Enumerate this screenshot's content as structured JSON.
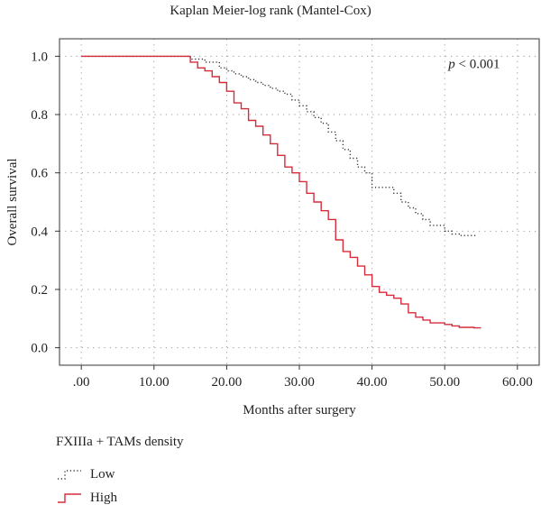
{
  "chart_data": {
    "type": "line",
    "title": "Kaplan Meier-log rank (Mantel-Cox)",
    "xlabel": "Months after surgery",
    "ylabel": "Overall survival",
    "xlim": [
      -3,
      63
    ],
    "ylim": [
      -0.06,
      1.06
    ],
    "x_ticks": [
      0,
      10,
      20,
      30,
      40,
      50,
      60
    ],
    "x_tick_labels": [
      ".00",
      "10.00",
      "20.00",
      "30.00",
      "40.00",
      "50.00",
      "60.00"
    ],
    "y_ticks": [
      0,
      0.2,
      0.4,
      0.6,
      0.8,
      1.0
    ],
    "y_tick_labels": [
      "0.0",
      "0.2",
      "0.4",
      "0.6",
      "0.8",
      "1.0"
    ],
    "grid": true,
    "annotation": {
      "prefix": "p",
      "text": " < 0.001",
      "x": 50.5,
      "y": 0.975
    },
    "legend": {
      "title": "FXIIIa + TAMs density",
      "position": "bottom-left"
    },
    "series": [
      {
        "name": "Low",
        "style": "dotted",
        "color": "#333333",
        "steps": [
          [
            0,
            1.0
          ],
          [
            15,
            0.99
          ],
          [
            17,
            0.98
          ],
          [
            19,
            0.96
          ],
          [
            20,
            0.95
          ],
          [
            21,
            0.94
          ],
          [
            22,
            0.93
          ],
          [
            23,
            0.92
          ],
          [
            24,
            0.91
          ],
          [
            25,
            0.9
          ],
          [
            26,
            0.89
          ],
          [
            27,
            0.88
          ],
          [
            28,
            0.87
          ],
          [
            29,
            0.85
          ],
          [
            30,
            0.83
          ],
          [
            31,
            0.81
          ],
          [
            32,
            0.79
          ],
          [
            33,
            0.77
          ],
          [
            34,
            0.74
          ],
          [
            35,
            0.71
          ],
          [
            36,
            0.68
          ],
          [
            37,
            0.65
          ],
          [
            38,
            0.62
          ],
          [
            39,
            0.6
          ],
          [
            40,
            0.55
          ],
          [
            43,
            0.53
          ],
          [
            44,
            0.5
          ],
          [
            45,
            0.48
          ],
          [
            46,
            0.46
          ],
          [
            47,
            0.44
          ],
          [
            48,
            0.42
          ],
          [
            50,
            0.4
          ],
          [
            51,
            0.39
          ],
          [
            52,
            0.385
          ],
          [
            54.5,
            0.385
          ]
        ]
      },
      {
        "name": "High",
        "style": "solid",
        "color": "#d62c3a",
        "steps": [
          [
            0,
            1.0
          ],
          [
            15,
            0.98
          ],
          [
            16,
            0.96
          ],
          [
            17,
            0.95
          ],
          [
            18,
            0.93
          ],
          [
            19,
            0.91
          ],
          [
            20,
            0.88
          ],
          [
            21,
            0.84
          ],
          [
            22,
            0.82
          ],
          [
            23,
            0.78
          ],
          [
            24,
            0.76
          ],
          [
            25,
            0.73
          ],
          [
            26,
            0.7
          ],
          [
            27,
            0.66
          ],
          [
            28,
            0.62
          ],
          [
            29,
            0.6
          ],
          [
            30,
            0.57
          ],
          [
            31,
            0.53
          ],
          [
            32,
            0.5
          ],
          [
            33,
            0.47
          ],
          [
            34,
            0.44
          ],
          [
            35,
            0.37
          ],
          [
            36,
            0.33
          ],
          [
            37,
            0.31
          ],
          [
            38,
            0.28
          ],
          [
            39,
            0.25
          ],
          [
            40,
            0.21
          ],
          [
            41,
            0.19
          ],
          [
            42,
            0.18
          ],
          [
            43,
            0.17
          ],
          [
            44,
            0.15
          ],
          [
            45,
            0.12
          ],
          [
            46,
            0.105
          ],
          [
            47,
            0.095
          ],
          [
            48,
            0.085
          ],
          [
            50,
            0.08
          ],
          [
            51,
            0.075
          ],
          [
            52,
            0.07
          ],
          [
            54,
            0.068
          ],
          [
            55,
            0.068
          ]
        ]
      }
    ]
  }
}
